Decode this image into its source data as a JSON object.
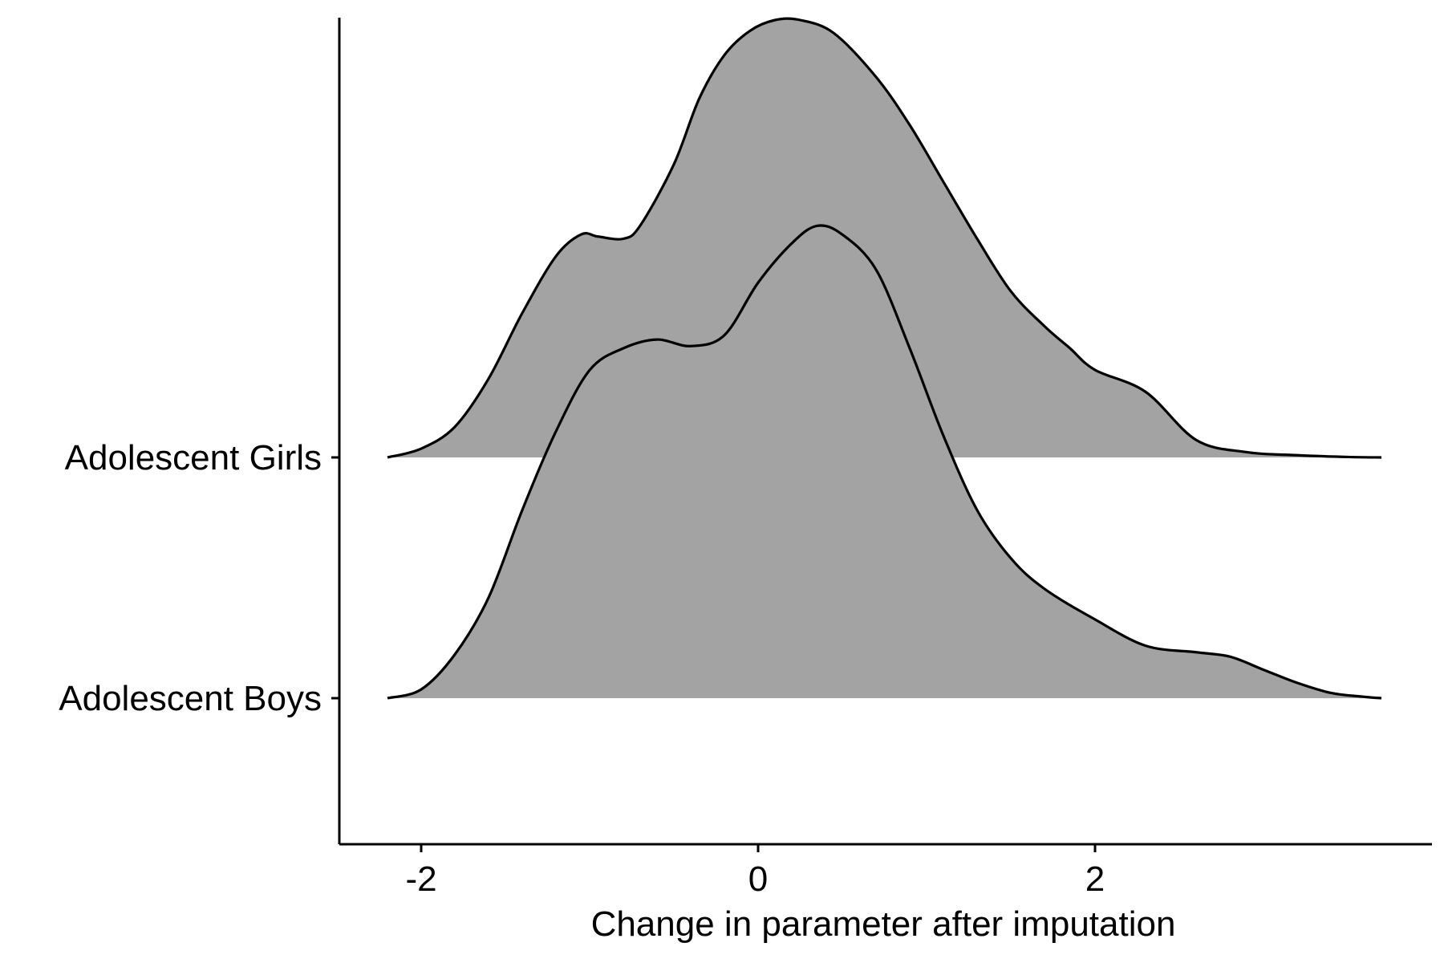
{
  "chart_data": {
    "type": "ridgeline",
    "xlabel": "Change in parameter after imputation",
    "ylabel": "",
    "xlim": [
      -2.5,
      4
    ],
    "x_ticks": [
      -2,
      0,
      2
    ],
    "x_tick_labels": [
      "-2",
      "0",
      "2"
    ],
    "fill_color": "#a3a3a3",
    "line_color": "#000000",
    "grid": false,
    "density_max_height_in_rows": 1.82,
    "categories": [
      "Adolescent Girls",
      "Adolescent Boys"
    ],
    "series": [
      {
        "name": "Adolescent Girls",
        "points": [
          [
            -2.2,
            0.0
          ],
          [
            -2.0,
            0.02
          ],
          [
            -1.8,
            0.07
          ],
          [
            -1.6,
            0.18
          ],
          [
            -1.4,
            0.33
          ],
          [
            -1.2,
            0.46
          ],
          [
            -1.05,
            0.51
          ],
          [
            -0.95,
            0.505
          ],
          [
            -0.8,
            0.5
          ],
          [
            -0.7,
            0.53
          ],
          [
            -0.5,
            0.67
          ],
          [
            -0.35,
            0.82
          ],
          [
            -0.2,
            0.92
          ],
          [
            -0.05,
            0.975
          ],
          [
            0.1,
            1.0
          ],
          [
            0.25,
            1.0
          ],
          [
            0.45,
            0.97
          ],
          [
            0.7,
            0.87
          ],
          [
            0.9,
            0.76
          ],
          [
            1.1,
            0.63
          ],
          [
            1.3,
            0.5
          ],
          [
            1.5,
            0.38
          ],
          [
            1.7,
            0.3
          ],
          [
            1.85,
            0.25
          ],
          [
            2.0,
            0.2
          ],
          [
            2.3,
            0.15
          ],
          [
            2.6,
            0.04
          ],
          [
            2.9,
            0.012
          ],
          [
            3.2,
            0.005
          ],
          [
            3.5,
            0.001
          ],
          [
            3.7,
            0.0
          ]
        ]
      },
      {
        "name": "Adolescent Boys",
        "points": [
          [
            -2.2,
            0.0
          ],
          [
            -2.0,
            0.02
          ],
          [
            -1.8,
            0.1
          ],
          [
            -1.6,
            0.23
          ],
          [
            -1.4,
            0.43
          ],
          [
            -1.2,
            0.61
          ],
          [
            -1.0,
            0.75
          ],
          [
            -0.8,
            0.8
          ],
          [
            -0.6,
            0.82
          ],
          [
            -0.4,
            0.805
          ],
          [
            -0.2,
            0.83
          ],
          [
            0.0,
            0.95
          ],
          [
            0.2,
            1.04
          ],
          [
            0.35,
            1.08
          ],
          [
            0.5,
            1.06
          ],
          [
            0.7,
            0.98
          ],
          [
            0.9,
            0.8
          ],
          [
            1.1,
            0.6
          ],
          [
            1.3,
            0.43
          ],
          [
            1.5,
            0.32
          ],
          [
            1.7,
            0.25
          ],
          [
            2.0,
            0.18
          ],
          [
            2.3,
            0.12
          ],
          [
            2.6,
            0.105
          ],
          [
            2.8,
            0.095
          ],
          [
            3.0,
            0.065
          ],
          [
            3.2,
            0.035
          ],
          [
            3.4,
            0.012
          ],
          [
            3.6,
            0.003
          ],
          [
            3.7,
            0.0
          ]
        ]
      }
    ]
  }
}
